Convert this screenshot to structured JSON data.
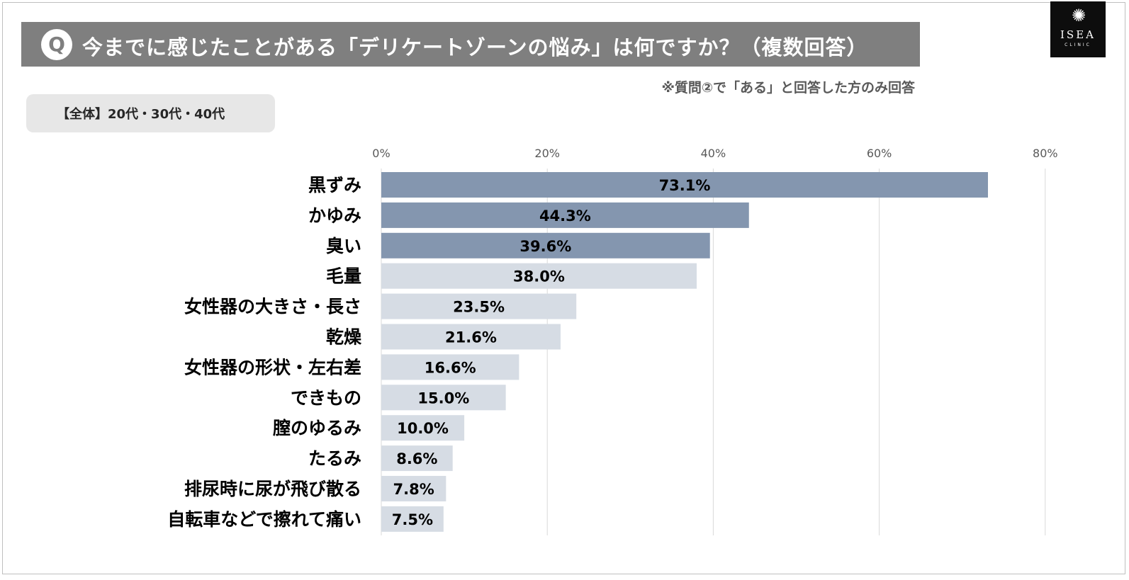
{
  "header": {
    "q_mark": "Q",
    "title": "今までに感じたことがある「デリケートゾーンの悩み」は何ですか？（複数回答）",
    "note": "※質問②で「ある」と回答した方のみ回答",
    "segment": "【全体】20代・30代・40代"
  },
  "logo": {
    "burst": "✺",
    "name": "ISEA",
    "sub": "CLINIC"
  },
  "colors": {
    "highlight": "#8496af",
    "normal": "#d6dce4",
    "grid": "#d9d9d9",
    "label": "#000000",
    "tick": "#595959"
  },
  "chart_data": {
    "type": "bar",
    "orientation": "horizontal",
    "title": "",
    "xlabel": "",
    "ylabel": "",
    "xlim": [
      0,
      80
    ],
    "ticks": [
      0,
      20,
      40,
      60,
      80
    ],
    "tick_labels": [
      "0%",
      "20%",
      "40%",
      "60%",
      "80%"
    ],
    "categories": [
      "黒ずみ",
      "かゆみ",
      "臭い",
      "毛量",
      "女性器の大きさ・長さ",
      "乾燥",
      "女性器の形状・左右差",
      "できもの",
      "膣のゆるみ",
      "たるみ",
      "排尿時に尿が飛び散る",
      "自転車などで擦れて痛い"
    ],
    "values": [
      73.1,
      44.3,
      39.6,
      38.0,
      23.5,
      21.6,
      16.6,
      15.0,
      10.0,
      8.6,
      7.8,
      7.5
    ],
    "value_labels": [
      "73.1%",
      "44.3%",
      "39.6%",
      "38.0%",
      "23.5%",
      "21.6%",
      "16.6%",
      "15.0%",
      "10.0%",
      "8.6%",
      "7.8%",
      "7.5%"
    ],
    "highlighted_top": 3
  }
}
